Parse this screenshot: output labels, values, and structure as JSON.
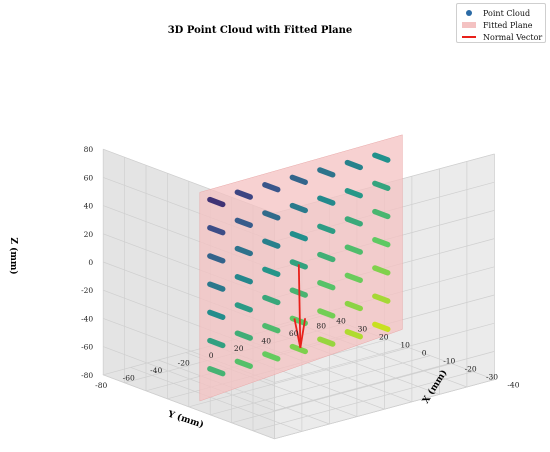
{
  "chart_data": {
    "type": "scatter",
    "title": "3D Point Cloud with Fitted Plane",
    "xlabel": "X (mm)",
    "ylabel": "Y (mm)",
    "zlabel": "Z (mm)",
    "xlim": [
      -40,
      40
    ],
    "ylim": [
      -80,
      80
    ],
    "zlim": [
      -80,
      80
    ],
    "x_ticks": [
      "-40",
      "-30",
      "-20",
      "-10",
      "0",
      "10",
      "20",
      "30",
      "40"
    ],
    "y_ticks": [
      "-80",
      "-60",
      "-40",
      "-20",
      "0",
      "20",
      "40",
      "60",
      "80"
    ],
    "z_ticks": [
      "-80",
      "-60",
      "-40",
      "-20",
      "0",
      "20",
      "40",
      "60",
      "80"
    ],
    "grid": true,
    "legend_placement": "top-right",
    "legend": [
      "Point Cloud",
      "Fitted Plane",
      "Normal Vector"
    ],
    "colors": {
      "points_low": "#31235f",
      "points_mid": "#21918c",
      "points_high": "#c8e020",
      "plane": "#f4c2c2",
      "normal": "#e8201a"
    },
    "points": {
      "y": [
        -60,
        -40,
        -20,
        0,
        20,
        40,
        60
      ],
      "z": [
        -60,
        -40,
        -20,
        0,
        20,
        40,
        60
      ],
      "x_note": "points lie on a vertical plane at approximately x = -6 to 6, spread along y and z"
    },
    "series": [
      {
        "name": "Point Cloud",
        "type": "scatter3d"
      },
      {
        "name": "Fitted Plane",
        "type": "surface"
      },
      {
        "name": "Normal Vector",
        "type": "line",
        "from": [
          0,
          0,
          0
        ],
        "to": [
          -20,
          -30,
          -40
        ]
      }
    ]
  }
}
